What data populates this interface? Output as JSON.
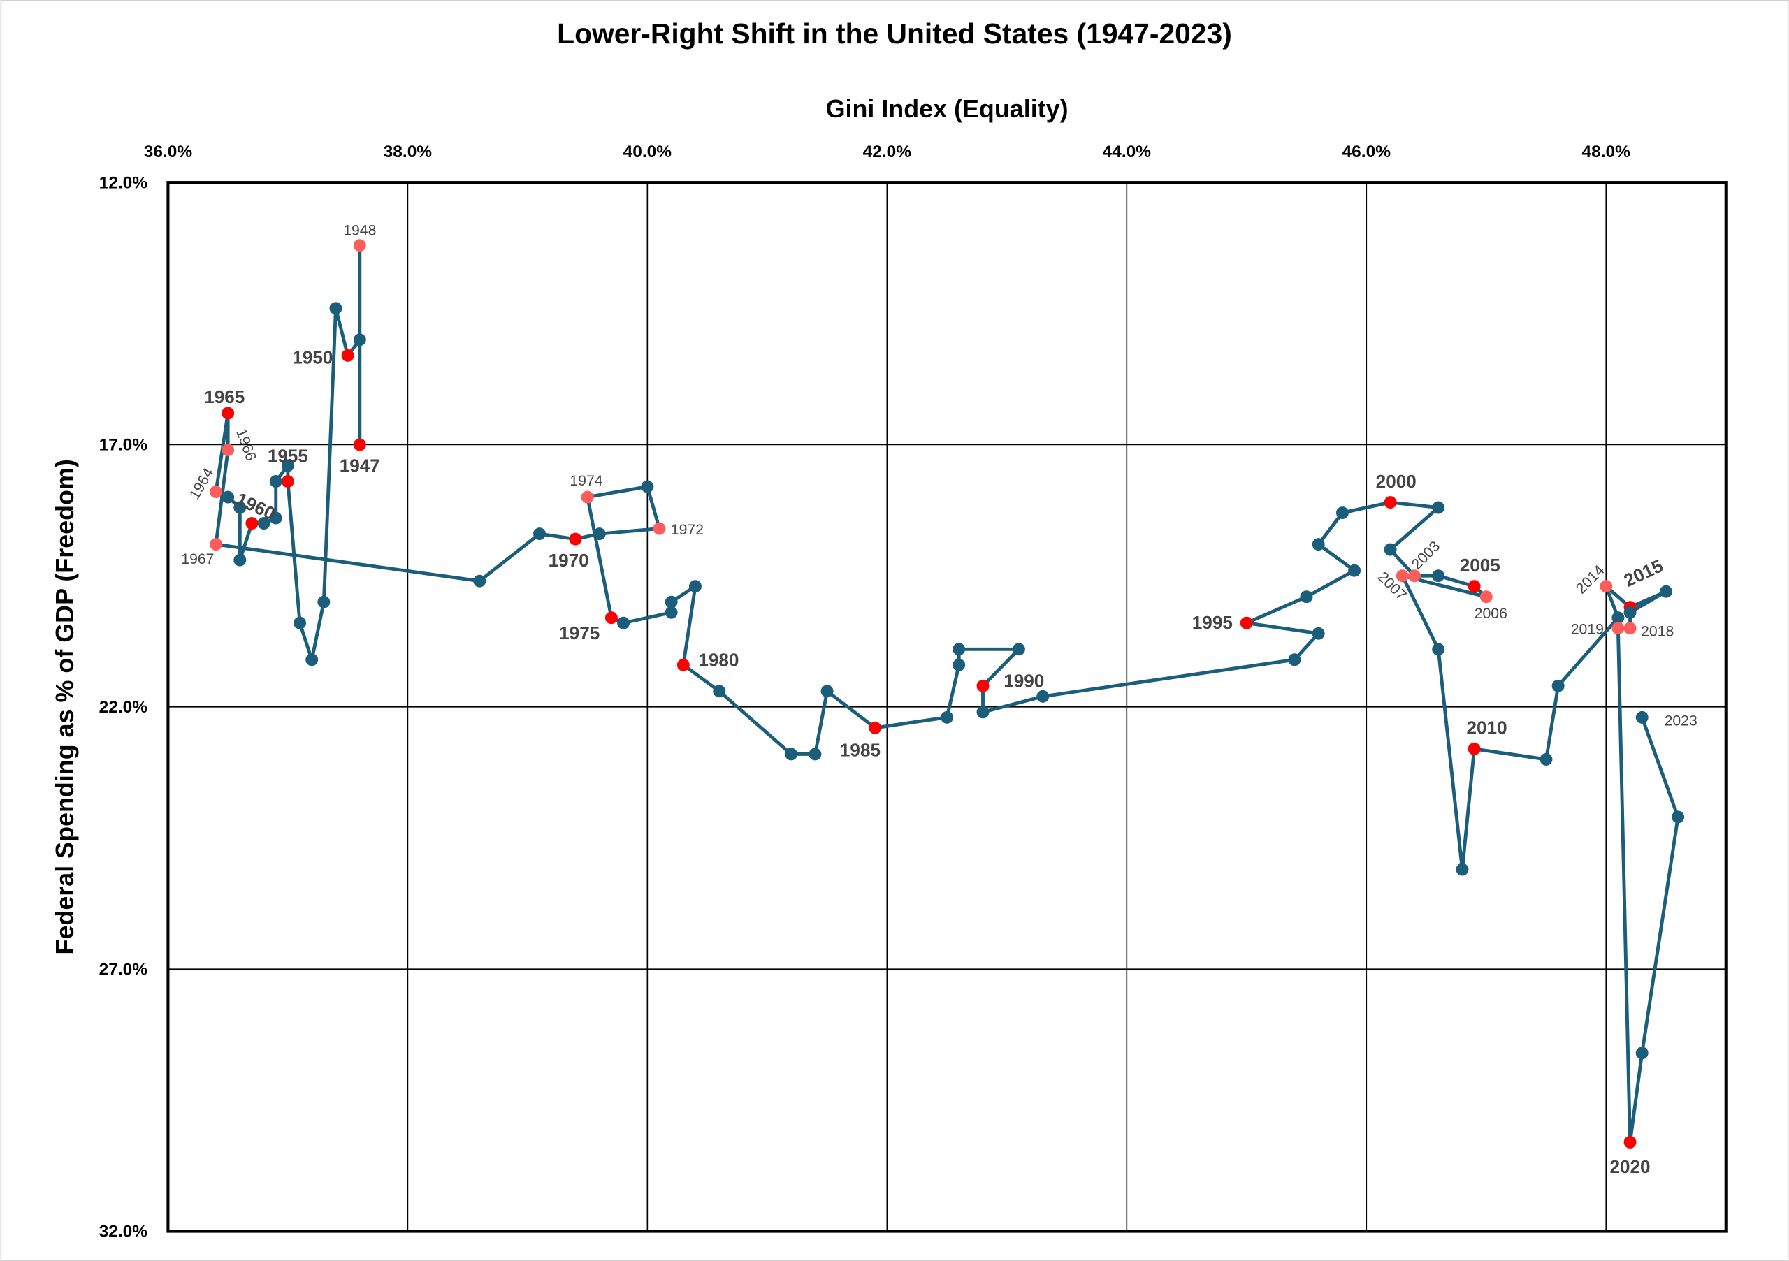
{
  "chart_data": {
    "type": "connected-scatter",
    "title": "Lower-Right Shift in the United States (1947-2023)",
    "x_label": "Gini Index (Equality)",
    "y_label": "Federal Spending as % of GDP (Freedom)",
    "x_axis_position": "top",
    "y_reversed": true,
    "grid": true,
    "line_color": "#1b5e7b",
    "xlim": [
      36,
      49
    ],
    "ylim": [
      12,
      32
    ],
    "xticks": [
      {
        "value": 36,
        "label": "36.0%"
      },
      {
        "value": 38,
        "label": "38.0%"
      },
      {
        "value": 40,
        "label": "40.0%"
      },
      {
        "value": 42,
        "label": "42.0%"
      },
      {
        "value": 44,
        "label": "44.0%"
      },
      {
        "value": 46,
        "label": "46.0%"
      },
      {
        "value": 48,
        "label": "48.0%"
      }
    ],
    "yticks": [
      {
        "value": 12,
        "label": "12.0%"
      },
      {
        "value": 17,
        "label": "17.0%"
      },
      {
        "value": 22,
        "label": "22.0%"
      },
      {
        "value": 27,
        "label": "27.0%"
      },
      {
        "value": 32,
        "label": "32.0%"
      }
    ],
    "x": [
      37.6,
      37.6,
      37.6,
      37.5,
      37.4,
      37.3,
      37.2,
      37.1,
      37.0,
      37.0,
      36.9,
      36.9,
      36.8,
      36.7,
      36.6,
      36.6,
      36.5,
      36.4,
      36.5,
      36.5,
      36.4,
      38.6,
      39.1,
      39.4,
      39.6,
      40.1,
      40.0,
      39.5,
      39.7,
      39.8,
      40.2,
      40.2,
      40.4,
      40.3,
      40.6,
      41.2,
      41.4,
      41.5,
      41.9,
      42.5,
      42.6,
      42.6,
      43.1,
      42.8,
      42.8,
      43.3,
      45.4,
      45.6,
      45.0,
      45.5,
      45.9,
      45.6,
      45.8,
      46.2,
      46.6,
      46.2,
      46.4,
      46.6,
      46.9,
      47.0,
      46.3,
      46.6,
      46.8,
      46.9,
      47.5,
      47.6,
      48.1,
      48.0,
      48.2,
      48.5,
      48.2,
      48.2,
      48.1,
      48.2,
      48.3,
      48.6,
      48.3
    ],
    "y": [
      17.0,
      13.2,
      15.0,
      15.3,
      14.4,
      20.0,
      21.1,
      20.4,
      17.7,
      17.4,
      17.7,
      18.4,
      18.5,
      18.5,
      19.2,
      18.2,
      18.0,
      17.9,
      16.4,
      17.1,
      18.9,
      19.6,
      18.7,
      18.8,
      18.7,
      18.6,
      17.8,
      18.0,
      20.3,
      20.4,
      20.2,
      20.0,
      19.7,
      21.2,
      21.7,
      22.9,
      22.9,
      21.7,
      22.4,
      22.2,
      21.2,
      20.9,
      20.9,
      21.6,
      22.1,
      21.8,
      21.1,
      20.6,
      20.4,
      19.9,
      19.4,
      18.9,
      18.3,
      18.1,
      18.2,
      19.0,
      19.5,
      19.5,
      19.7,
      19.9,
      19.5,
      20.9,
      25.1,
      22.8,
      23.0,
      21.6,
      20.3,
      19.7,
      20.1,
      19.8,
      20.2,
      20.5,
      20.5,
      30.3,
      28.6,
      24.1,
      22.2
    ],
    "labels": [
      "1947",
      "1948",
      null,
      "1950",
      null,
      null,
      null,
      null,
      "1955",
      null,
      null,
      null,
      null,
      "1960",
      null,
      null,
      null,
      "1964",
      "1965",
      "1966",
      "1967",
      null,
      null,
      "1970",
      null,
      "1972",
      null,
      "1974",
      "1975",
      null,
      null,
      null,
      null,
      "1980",
      null,
      null,
      null,
      null,
      "1985",
      null,
      null,
      null,
      null,
      "1990",
      null,
      null,
      null,
      null,
      "1995",
      null,
      null,
      null,
      null,
      "2000",
      null,
      null,
      "2003",
      null,
      "2005",
      "2006",
      "2007",
      null,
      null,
      "2010",
      null,
      null,
      null,
      "2014",
      "2015",
      null,
      null,
      "2018",
      "2019",
      "2020",
      null,
      null,
      "2023"
    ],
    "marker_colors": [
      "#ff0000",
      "#ff5c5c",
      "#1b5e7b",
      "#ff0000",
      "#1b5e7b",
      "#1b5e7b",
      "#1b5e7b",
      "#1b5e7b",
      "#ff0000",
      "#1b5e7b",
      "#1b5e7b",
      "#1b5e7b",
      "#1b5e7b",
      "#ff0000",
      "#1b5e7b",
      "#1b5e7b",
      "#1b5e7b",
      "#ff5c5c",
      "#ff0000",
      "#ff5c5c",
      "#ff5c5c",
      "#1b5e7b",
      "#1b5e7b",
      "#ff0000",
      "#1b5e7b",
      "#ff5c5c",
      "#1b5e7b",
      "#ff5c5c",
      "#ff0000",
      "#1b5e7b",
      "#1b5e7b",
      "#1b5e7b",
      "#1b5e7b",
      "#ff0000",
      "#1b5e7b",
      "#1b5e7b",
      "#1b5e7b",
      "#1b5e7b",
      "#ff0000",
      "#1b5e7b",
      "#1b5e7b",
      "#1b5e7b",
      "#1b5e7b",
      "#ff0000",
      "#1b5e7b",
      "#1b5e7b",
      "#1b5e7b",
      "#1b5e7b",
      "#ff0000",
      "#1b5e7b",
      "#1b5e7b",
      "#1b5e7b",
      "#1b5e7b",
      "#ff0000",
      "#1b5e7b",
      "#1b5e7b",
      "#ff5c5c",
      "#1b5e7b",
      "#ff0000",
      "#ff5c5c",
      "#ff5c5c",
      "#1b5e7b",
      "#1b5e7b",
      "#ff0000",
      "#1b5e7b",
      "#1b5e7b",
      "#1b5e7b",
      "#ff5c5c",
      "#ff0000",
      "#1b5e7b",
      "#1b5e7b",
      "#ff5c5c",
      "#ff5c5c",
      "#ff0000",
      "#1b5e7b",
      "#1b5e7b",
      "#1b5e7b"
    ]
  }
}
